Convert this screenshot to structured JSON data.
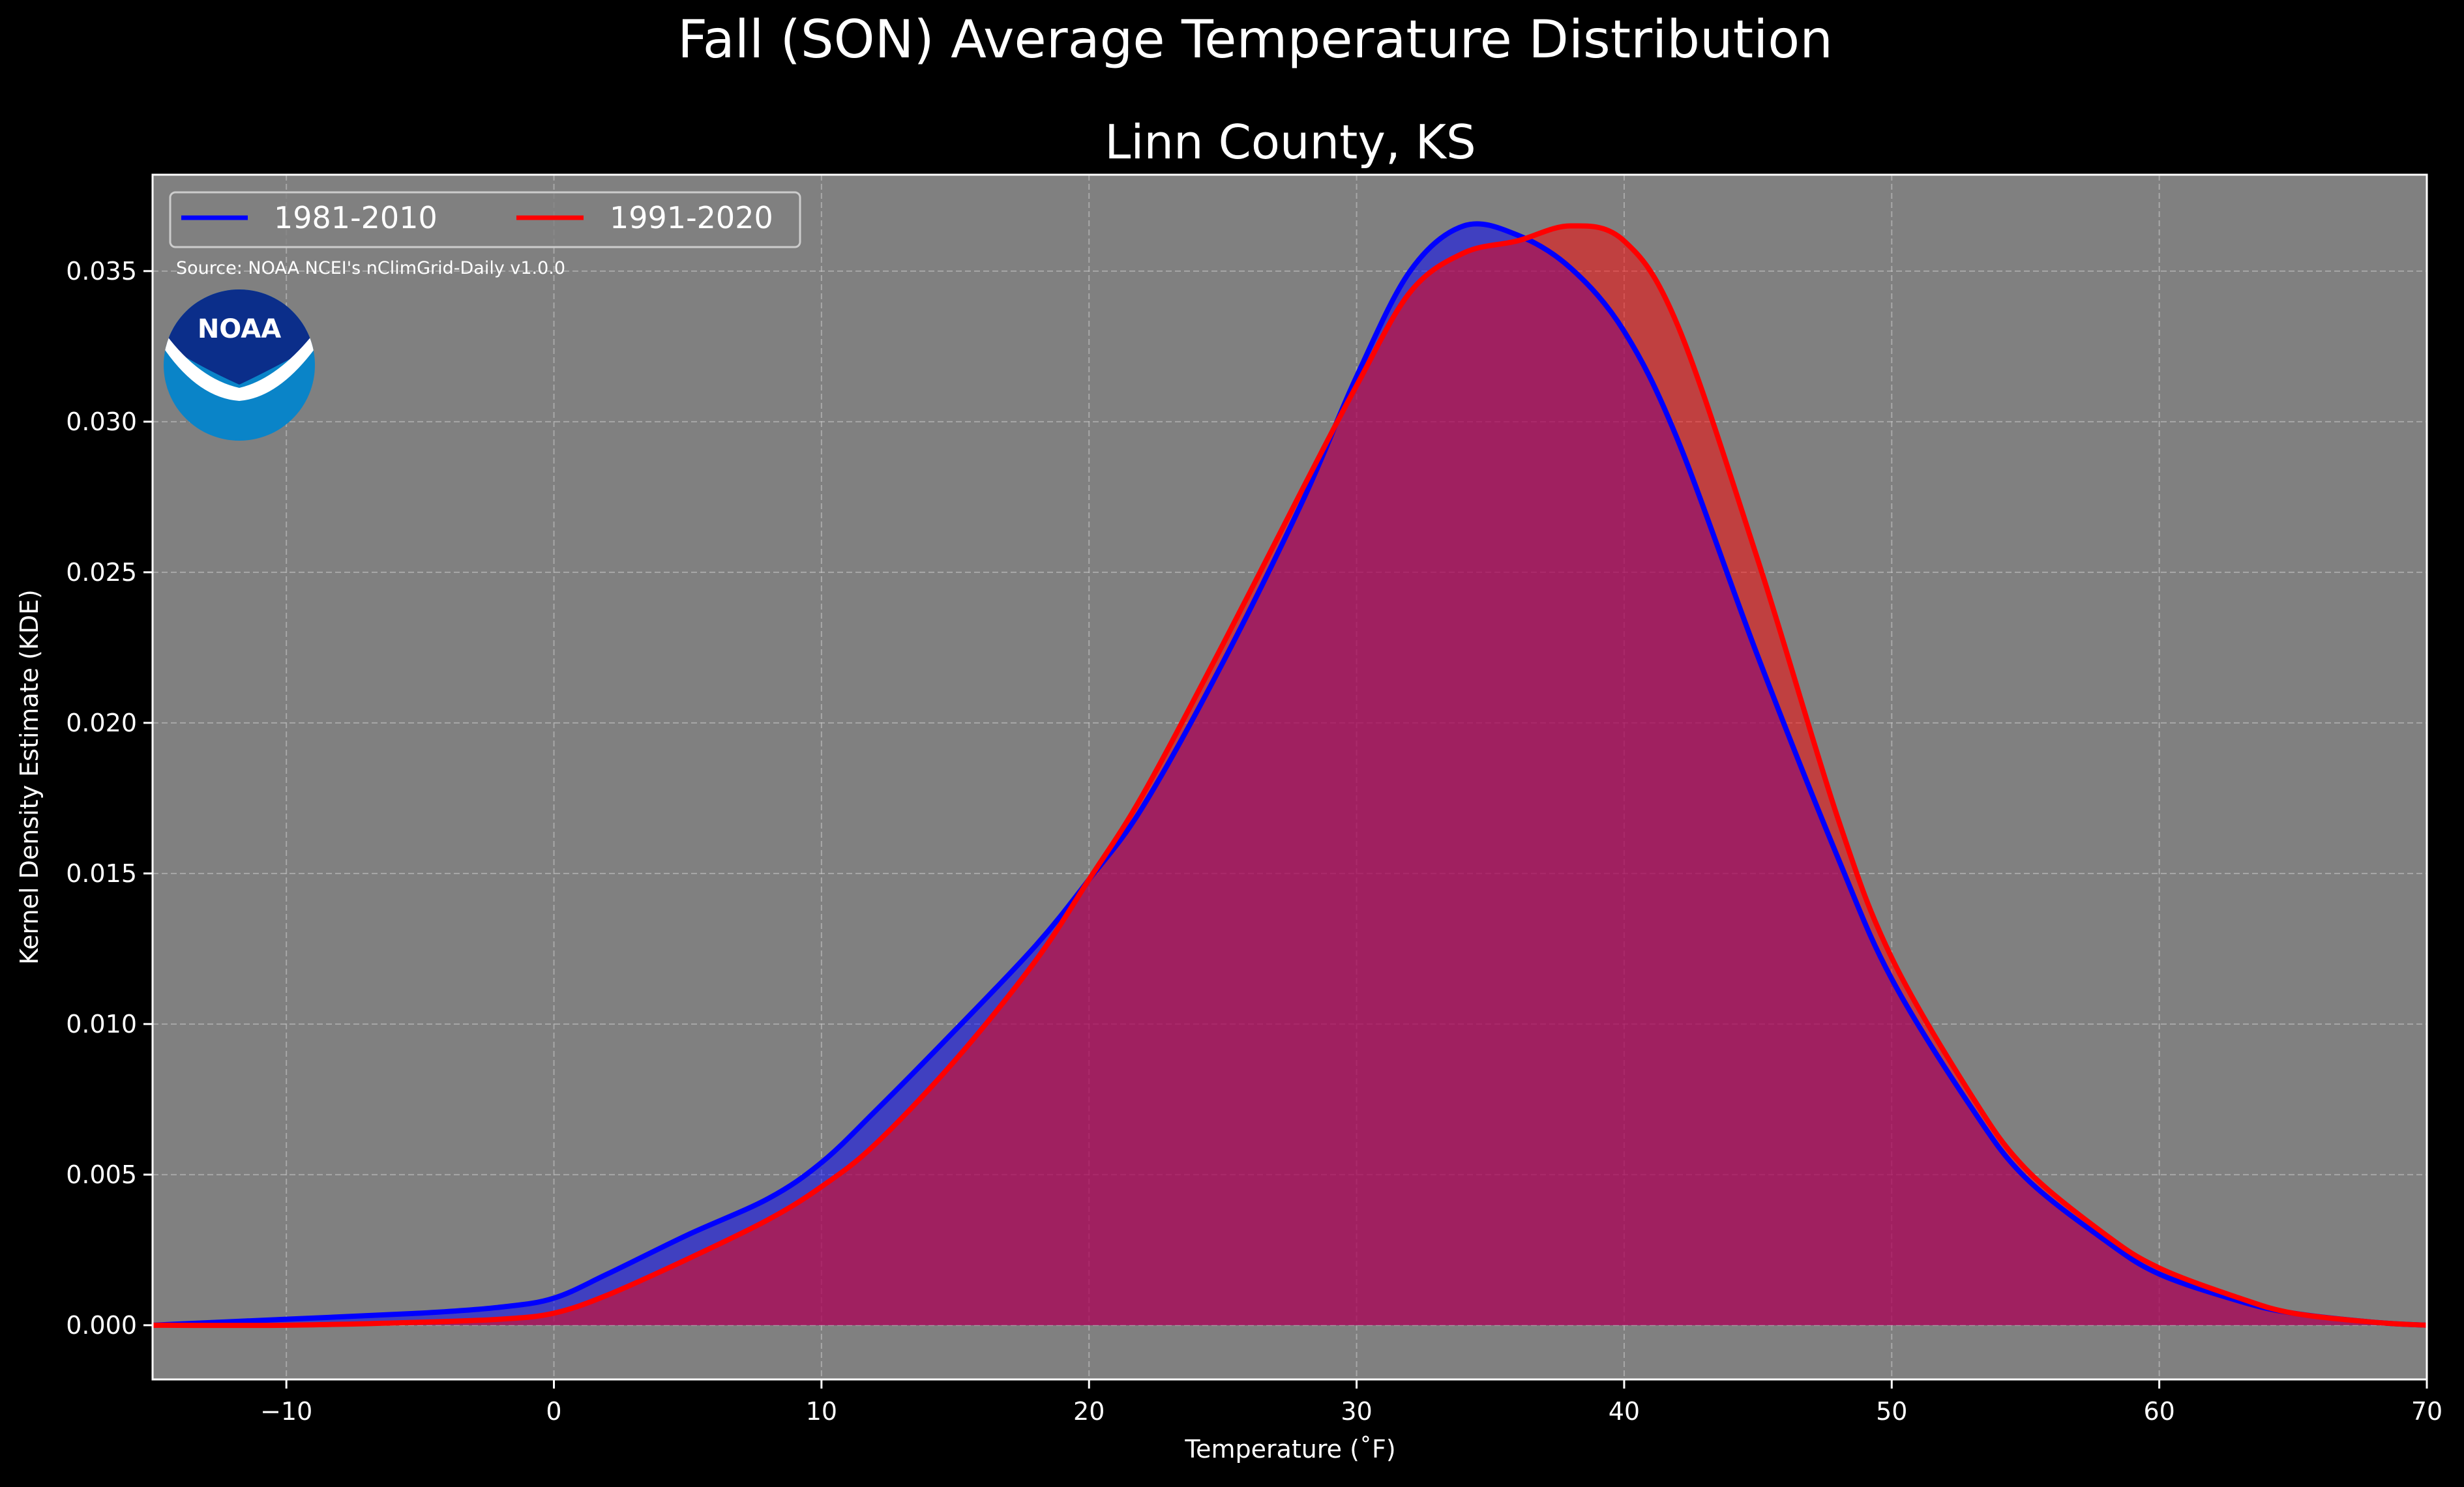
{
  "chart_data": {
    "type": "area",
    "suptitle": "Fall (SON) Average Temperature Distribution",
    "title": "Linn County, KS",
    "xlabel": "Temperature (˚F)",
    "ylabel": "Kernel Density Estimate (KDE)",
    "xlim": [
      -15,
      70
    ],
    "ylim": [
      -0.0018,
      0.0382
    ],
    "xticks": [
      -10,
      0,
      10,
      20,
      30,
      40,
      50,
      60,
      70
    ],
    "xtick_labels": [
      "−10",
      "0",
      "10",
      "20",
      "30",
      "40",
      "50",
      "60",
      "70"
    ],
    "yticks": [
      0.0,
      0.005,
      0.01,
      0.015,
      0.02,
      0.025,
      0.03,
      0.035
    ],
    "ytick_labels": [
      "0.000",
      "0.005",
      "0.010",
      "0.015",
      "0.020",
      "0.025",
      "0.030",
      "0.035"
    ],
    "grid": true,
    "legend_position": "top-left",
    "source_note": "Source: NOAA NCEI's nClimGrid-Daily v1.0.0",
    "logo_text": "NOAA",
    "background_color": "#808080",
    "series": [
      {
        "name": "1981-2010",
        "color": "#0000ff",
        "fill": "#0000ff",
        "x": [
          -15,
          -10,
          -5,
          -2,
          0,
          2,
          5,
          8,
          10,
          12,
          15,
          18,
          20,
          22,
          25,
          28,
          30,
          32,
          34,
          36,
          38,
          40,
          42,
          45,
          48,
          50,
          53,
          55,
          58,
          60,
          63,
          65,
          68,
          70
        ],
        "y": [
          0.0,
          0.0002,
          0.0004,
          0.0006,
          0.0009,
          0.0017,
          0.003,
          0.0042,
          0.0054,
          0.0071,
          0.0098,
          0.0126,
          0.0148,
          0.0172,
          0.022,
          0.0274,
          0.0315,
          0.035,
          0.0365,
          0.0362,
          0.0351,
          0.033,
          0.0294,
          0.0222,
          0.0155,
          0.0115,
          0.0072,
          0.0049,
          0.0028,
          0.0017,
          0.0008,
          0.0004,
          0.0001,
          0.0
        ]
      },
      {
        "name": "1991-2020",
        "color": "#ff0000",
        "fill": "#ff0000",
        "x": [
          -15,
          -10,
          -5,
          -2,
          0,
          2,
          5,
          8,
          10,
          12,
          15,
          18,
          20,
          22,
          25,
          28,
          30,
          32,
          34,
          36,
          38,
          40,
          42,
          45,
          48,
          50,
          53,
          55,
          58,
          60,
          63,
          65,
          68,
          70
        ],
        "y": [
          0.0,
          0.0,
          0.0001,
          0.0002,
          0.0004,
          0.001,
          0.0022,
          0.0035,
          0.0046,
          0.006,
          0.0088,
          0.0121,
          0.0148,
          0.0176,
          0.0226,
          0.0278,
          0.0312,
          0.0343,
          0.0356,
          0.036,
          0.0365,
          0.036,
          0.0332,
          0.0254,
          0.0168,
          0.0122,
          0.0076,
          0.0052,
          0.003,
          0.0019,
          0.0009,
          0.0004,
          0.0001,
          0.0
        ]
      }
    ]
  }
}
